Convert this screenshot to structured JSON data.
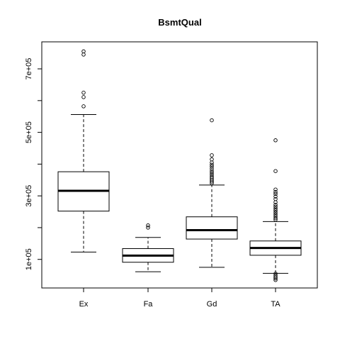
{
  "chart_data": {
    "type": "boxplot",
    "title": "BsmtQual",
    "xlabel": "",
    "ylabel": "",
    "categories": [
      "Ex",
      "Fa",
      "Gd",
      "TA"
    ],
    "y_tick_values": [
      100000,
      300000,
      500000,
      700000
    ],
    "y_tick_labels": [
      "1e+05",
      "3e+05",
      "5e+05",
      "7e+05"
    ],
    "ylim": [
      10000,
      785000
    ],
    "grid": false,
    "legend": "none",
    "boxes": [
      {
        "category": "Ex",
        "whisker_low": 123000,
        "q1": 252000,
        "median": 316000,
        "q3": 376000,
        "whisker_high": 556000,
        "outliers": [
          582000,
          611000,
          625000,
          745000,
          755000
        ]
      },
      {
        "category": "Fa",
        "whisker_low": 61000,
        "q1": 91000,
        "median": 112000,
        "q3": 134000,
        "whisker_high": 169000,
        "outliers": [
          200000,
          207000
        ]
      },
      {
        "category": "Gd",
        "whisker_low": 75000,
        "q1": 164000,
        "median": 192000,
        "q3": 234000,
        "whisker_high": 334000,
        "outliers": [
          340000,
          345000,
          350000,
          355000,
          360000,
          366000,
          372000,
          378000,
          385000,
          392000,
          398000,
          405000,
          415000,
          428000,
          538000
        ]
      },
      {
        "category": "TA",
        "whisker_low": 56000,
        "q1": 113000,
        "median": 136000,
        "q3": 158000,
        "whisker_high": 219000,
        "outliers": [
          225000,
          230000,
          236000,
          242000,
          248000,
          254000,
          260000,
          266000,
          272000,
          280000,
          290000,
          298000,
          306000,
          312000,
          320000,
          378000,
          475000,
          35000,
          40000,
          44000,
          49000,
          55000
        ]
      }
    ]
  }
}
